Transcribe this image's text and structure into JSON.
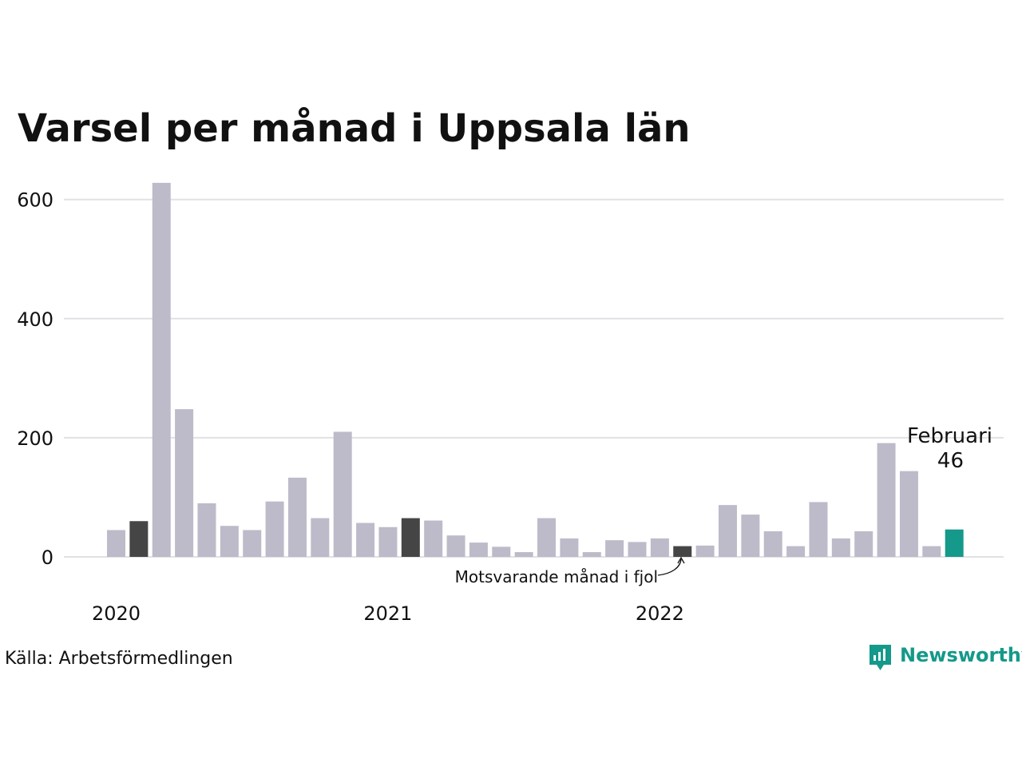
{
  "chart_data": {
    "type": "bar",
    "title": "Varsel per månad i Uppsala län",
    "xlabel": "",
    "ylabel": "",
    "ylim": [
      0,
      630
    ],
    "yticks": [
      0,
      200,
      400,
      600
    ],
    "ytick_labels": [
      "0",
      "200",
      "400",
      "600"
    ],
    "grid": true,
    "legend": "none",
    "x_tick_labels": [
      {
        "label": "2020",
        "index": 0
      },
      {
        "label": "2021",
        "index": 12
      },
      {
        "label": "2022",
        "index": 24
      }
    ],
    "categories": [
      "2020-01",
      "2020-02",
      "2020-03",
      "2020-04",
      "2020-05",
      "2020-06",
      "2020-07",
      "2020-08",
      "2020-09",
      "2020-10",
      "2020-11",
      "2020-12",
      "2021-01",
      "2021-02",
      "2021-03",
      "2021-04",
      "2021-05",
      "2021-06",
      "2021-07",
      "2021-08",
      "2021-09",
      "2021-10",
      "2021-11",
      "2021-12",
      "2022-01",
      "2022-02",
      "2022-03",
      "2022-04",
      "2022-05",
      "2022-06",
      "2022-07",
      "2022-08",
      "2022-09",
      "2022-10",
      "2022-11",
      "2022-12",
      "2023-01",
      "2023-02"
    ],
    "values": [
      45,
      60,
      628,
      248,
      90,
      52,
      45,
      93,
      133,
      65,
      210,
      57,
      50,
      65,
      61,
      36,
      24,
      17,
      8,
      65,
      31,
      8,
      28,
      25,
      31,
      18,
      19,
      87,
      71,
      43,
      18,
      92,
      31,
      43,
      191,
      144,
      18,
      46
    ],
    "highlight": {
      "same_month_indices": [
        1,
        13,
        25
      ],
      "current_index": 37
    },
    "colors": {
      "default": "#bdbbc9",
      "same_month": "#454545",
      "current": "#14998a",
      "grid": "#e1e1e6"
    },
    "annotations": {
      "same_month_label": "Motsvarande månad i fjol",
      "callout_month": "Februari",
      "callout_value": "46"
    }
  },
  "footer": {
    "source": "Källa: Arbetsförmedlingen",
    "brand": "Newsworthy",
    "brand_color": "#14998a",
    "brand_icon": "bar-chart-pin-icon"
  }
}
